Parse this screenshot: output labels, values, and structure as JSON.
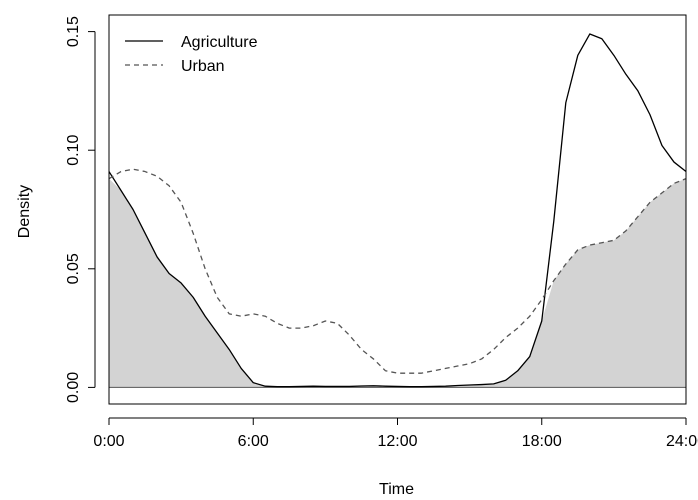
{
  "chart_data": {
    "type": "line",
    "xlabel": "Time",
    "ylabel": "Density",
    "xlim": [
      0,
      24
    ],
    "ylim": [
      -0.007,
      0.157
    ],
    "xticks": [
      0,
      6,
      12,
      18,
      24
    ],
    "xtick_labels": [
      "0:00",
      "6:00",
      "12:00",
      "18:00",
      "24:00"
    ],
    "yticks": [
      0.0,
      0.05,
      0.1,
      0.15
    ],
    "ytick_labels": [
      "0.00",
      "0.05",
      "0.10",
      "0.15"
    ],
    "grid": false,
    "legend_position": "top-left",
    "overlap_fill_color": "#d3d3d3",
    "series": [
      {
        "name": "Agriculture",
        "style": "solid",
        "color": "#000000",
        "x": [
          0,
          0.5,
          1,
          1.5,
          2,
          2.5,
          3,
          3.5,
          4,
          4.5,
          5,
          5.5,
          6,
          6.5,
          7,
          7.5,
          8,
          8.5,
          9,
          9.5,
          10,
          10.5,
          11,
          11.5,
          12,
          12.5,
          13,
          13.5,
          14,
          14.5,
          15,
          15.5,
          16,
          16.5,
          17,
          17.5,
          18,
          18.5,
          19,
          19.5,
          20,
          20.5,
          21,
          21.5,
          22,
          22.5,
          23,
          23.5,
          24
        ],
        "y": [
          0.091,
          0.083,
          0.075,
          0.065,
          0.055,
          0.048,
          0.044,
          0.038,
          0.03,
          0.023,
          0.016,
          0.008,
          0.002,
          0.0005,
          0.0003,
          0.0003,
          0.0004,
          0.0005,
          0.0004,
          0.0004,
          0.0004,
          0.0006,
          0.0007,
          0.0005,
          0.0004,
          0.0003,
          0.0003,
          0.0004,
          0.0005,
          0.0008,
          0.001,
          0.0012,
          0.0015,
          0.003,
          0.007,
          0.013,
          0.028,
          0.07,
          0.12,
          0.14,
          0.149,
          0.147,
          0.14,
          0.132,
          0.125,
          0.115,
          0.102,
          0.095,
          0.091
        ]
      },
      {
        "name": "Urban",
        "style": "dashed",
        "color": "#555555",
        "x": [
          0,
          0.5,
          1,
          1.5,
          2,
          2.5,
          3,
          3.5,
          4,
          4.5,
          5,
          5.5,
          6,
          6.5,
          7,
          7.5,
          8,
          8.5,
          9,
          9.5,
          10,
          10.5,
          11,
          11.5,
          12,
          12.5,
          13,
          13.5,
          14,
          14.5,
          15,
          15.5,
          16,
          16.5,
          17,
          17.5,
          18,
          18.5,
          19,
          19.5,
          20,
          20.5,
          21,
          21.5,
          22,
          22.5,
          23,
          23.5,
          24
        ],
        "y": [
          0.088,
          0.091,
          0.092,
          0.091,
          0.089,
          0.085,
          0.078,
          0.065,
          0.05,
          0.038,
          0.031,
          0.03,
          0.031,
          0.03,
          0.027,
          0.025,
          0.025,
          0.026,
          0.028,
          0.027,
          0.022,
          0.016,
          0.012,
          0.007,
          0.006,
          0.006,
          0.006,
          0.007,
          0.008,
          0.009,
          0.01,
          0.012,
          0.016,
          0.021,
          0.025,
          0.03,
          0.037,
          0.045,
          0.052,
          0.058,
          0.06,
          0.061,
          0.062,
          0.066,
          0.072,
          0.078,
          0.082,
          0.086,
          0.088
        ]
      }
    ]
  }
}
